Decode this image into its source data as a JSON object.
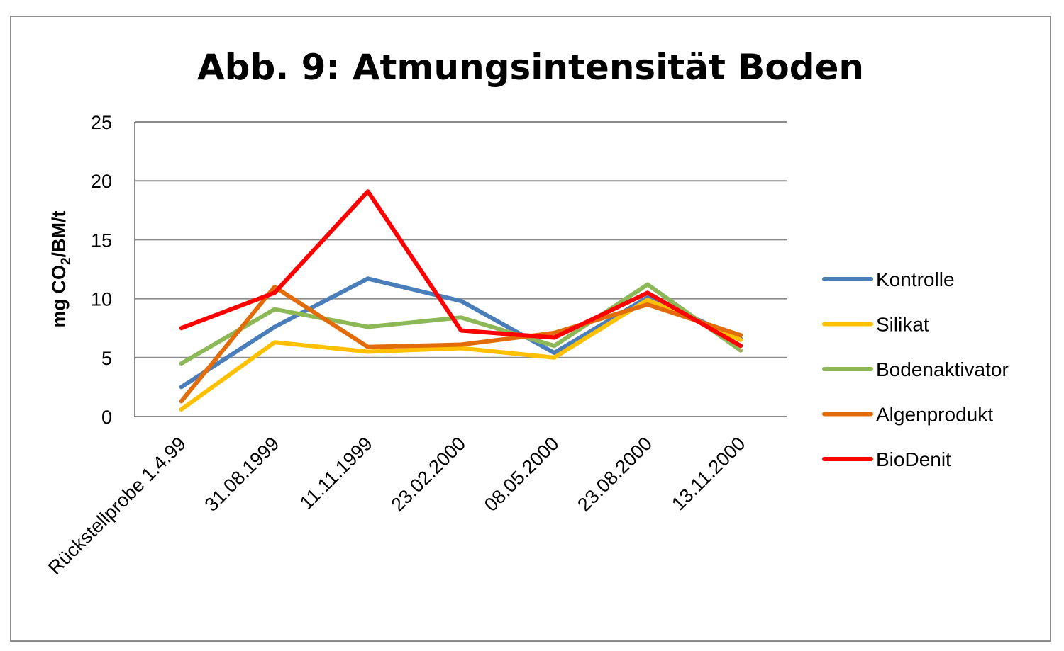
{
  "chart_data": {
    "type": "line",
    "title": "Abb. 9: Atmungsintensität Boden",
    "ylabel": {
      "prefix": "mg CO",
      "subscript": "2",
      "suffix": "/BM/t"
    },
    "xlabel": "",
    "ylim": [
      0,
      25
    ],
    "yticks": [
      "0",
      "5",
      "10",
      "15",
      "20",
      "25"
    ],
    "grid": true,
    "legend_position": "right",
    "categories": [
      "Rückstellprobe 1.4.99",
      "31.08.1999",
      "11.11.1999",
      "23.02.2000",
      "08.05.2000",
      "23.08.2000",
      "13.11.2000"
    ],
    "series": [
      {
        "name": "Kontrolle",
        "color": "#4a7ebb",
        "values": [
          2.5,
          7.6,
          11.7,
          9.8,
          5.4,
          10.1,
          6.6
        ]
      },
      {
        "name": "Silikat",
        "color": "#ffc000",
        "values": [
          0.6,
          6.3,
          5.5,
          5.8,
          5.0,
          9.9,
          6.5
        ]
      },
      {
        "name": "Bodenaktivator",
        "color": "#8db857",
        "values": [
          4.5,
          9.1,
          7.6,
          8.4,
          6.0,
          11.2,
          5.6
        ]
      },
      {
        "name": "Algenprodukt",
        "color": "#e36c0a",
        "values": [
          1.3,
          11.0,
          5.9,
          6.1,
          7.1,
          9.5,
          6.9
        ]
      },
      {
        "name": "BioDenit",
        "color": "#ff0000",
        "values": [
          7.5,
          10.5,
          19.1,
          7.3,
          6.7,
          10.5,
          6.0
        ]
      }
    ]
  }
}
